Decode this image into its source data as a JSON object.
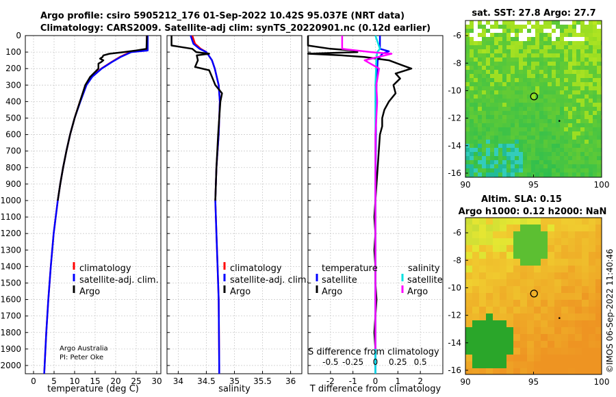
{
  "header": {
    "title_line1": "Argo profile: csiro 5905212_176 01-Sep-2022 10.42S 95.037E (NRT data)",
    "title_line2": "Climatology: CARS2009. Satellite-adj clim: synTS_20220901.nc (0.12d earlier)"
  },
  "credits": {
    "line1": "Argo Australia",
    "line2": "PI: Peter Oke"
  },
  "watermark": "©IMOS 06-Sep-2022 11:40:46",
  "colors": {
    "climatology": "#ff0000",
    "satellite_adj": "#0000ff",
    "argo": "#000000",
    "sat_temp": "#00e0e0",
    "sal_argo": "#ff00ff"
  },
  "chart_data": [
    {
      "type": "line",
      "title": "",
      "xlabel": "temperature (deg C)",
      "ylabel": "",
      "xlim": [
        -2,
        31
      ],
      "ylim": [
        2050,
        0
      ],
      "xticks": [
        0,
        5,
        10,
        15,
        20,
        25,
        30
      ],
      "yticks": [
        0,
        100,
        200,
        300,
        400,
        500,
        600,
        700,
        800,
        900,
        1000,
        1100,
        1200,
        1300,
        1400,
        1500,
        1600,
        1700,
        1800,
        1900,
        2000
      ],
      "legend": [
        "climatology",
        "satellite-adj. clim.",
        "Argo"
      ],
      "series": [
        {
          "name": "climatology",
          "depth": [
            0,
            90,
            100,
            130,
            160,
            200,
            250,
            300,
            400,
            500,
            600,
            700,
            800,
            900,
            1000,
            1200,
            1400,
            1600,
            1800,
            2000,
            2050
          ],
          "values": [
            27.6,
            27.6,
            23.5,
            21.0,
            19.0,
            16.5,
            14.2,
            12.8,
            11.3,
            10.0,
            8.9,
            8.0,
            7.2,
            6.5,
            5.9,
            4.9,
            4.2,
            3.6,
            3.1,
            2.7,
            2.6
          ]
        },
        {
          "name": "satellite-adj. clim.",
          "depth": [
            0,
            90,
            100,
            130,
            160,
            200,
            250,
            300,
            400,
            500,
            600,
            700,
            800,
            900,
            1000,
            1200,
            1400,
            1600,
            1800,
            2000,
            2050
          ],
          "values": [
            27.8,
            27.8,
            23.8,
            21.2,
            19.1,
            16.6,
            14.3,
            12.9,
            11.4,
            10.0,
            8.9,
            8.0,
            7.2,
            6.5,
            5.9,
            4.9,
            4.2,
            3.6,
            3.1,
            2.7,
            2.6
          ]
        },
        {
          "name": "Argo",
          "depth": [
            0,
            80,
            90,
            100,
            110,
            120,
            130,
            140,
            150,
            160,
            170,
            200,
            250,
            300,
            400,
            500,
            600,
            700,
            800,
            900,
            1000
          ],
          "values": [
            27.6,
            27.5,
            25.0,
            22.0,
            18.5,
            17.0,
            16.8,
            16.2,
            17.0,
            16.5,
            15.8,
            15.8,
            13.8,
            12.6,
            11.3,
            10.0,
            8.9,
            8.0,
            7.2,
            6.5,
            5.9
          ]
        }
      ]
    },
    {
      "type": "line",
      "title": "",
      "xlabel": "salinity",
      "ylabel": "",
      "xlim": [
        33.8,
        36.2
      ],
      "ylim": [
        2050,
        0
      ],
      "xticks": [
        34,
        34.5,
        35,
        35.5,
        36
      ],
      "legend": [
        "climatology",
        "satellite-adj. clim.",
        "Argo"
      ],
      "series": [
        {
          "name": "climatology",
          "depth": [
            0,
            50,
            80,
            100,
            150,
            200,
            300,
            400,
            600,
            800,
            1000,
            1200,
            1400,
            1600,
            2000,
            2050
          ],
          "values": [
            34.25,
            34.3,
            34.4,
            34.5,
            34.6,
            34.65,
            34.72,
            34.74,
            34.72,
            34.68,
            34.66,
            34.68,
            34.7,
            34.72,
            34.73,
            34.73
          ]
        },
        {
          "name": "satellite-adj. clim.",
          "depth": [
            0,
            50,
            80,
            100,
            150,
            200,
            300,
            400,
            600,
            800,
            1000,
            1200,
            1400,
            1600,
            2000,
            2050
          ],
          "values": [
            34.22,
            34.27,
            34.38,
            34.5,
            34.6,
            34.65,
            34.72,
            34.74,
            34.72,
            34.68,
            34.66,
            34.68,
            34.7,
            34.72,
            34.73,
            34.73
          ]
        },
        {
          "name": "Argo",
          "depth": [
            0,
            60,
            80,
            100,
            110,
            120,
            150,
            190,
            210,
            250,
            300,
            350,
            400,
            500,
            600,
            800,
            1000
          ],
          "values": [
            33.88,
            33.88,
            34.25,
            34.32,
            34.55,
            34.33,
            34.35,
            34.3,
            34.55,
            34.6,
            34.66,
            34.78,
            34.75,
            34.73,
            34.71,
            34.68,
            34.66
          ]
        }
      ]
    },
    {
      "type": "line",
      "title": "",
      "xlabel": "T difference from climatology",
      "xlabel_top": "S difference from climatology",
      "ylabel": "",
      "xlim": [
        -3,
        3
      ],
      "ylim": [
        2050,
        0
      ],
      "xticks": [
        -2,
        -1,
        0,
        1,
        2
      ],
      "xticks_top": [
        "-0.5",
        "-0.25",
        "0",
        "0.25",
        "0.5"
      ],
      "legend_headers": [
        "temperature",
        "salinity"
      ],
      "legend": [
        "satellite",
        "Argo",
        "satellite",
        "Argo"
      ],
      "series": [
        {
          "name": "temperature satellite",
          "depth": [
            0,
            80,
            95,
            110,
            150,
            300,
            600,
            1000,
            1500,
            2050
          ],
          "values": [
            0.2,
            0.2,
            0.6,
            0.3,
            0.1,
            0.05,
            0.02,
            0.0,
            0.0,
            0.0
          ]
        },
        {
          "name": "temperature Argo",
          "depth": [
            0,
            60,
            80,
            90,
            100,
            110,
            120,
            130,
            150,
            180,
            200,
            230,
            260,
            300,
            350,
            400,
            450,
            500,
            550,
            600,
            700,
            800,
            900,
            1000,
            1100,
            1200,
            1300,
            1400,
            1500,
            1600,
            1700,
            1800,
            1900
          ],
          "values": [
            -3.0,
            -3.0,
            -2.0,
            -1.0,
            -0.8,
            -3.0,
            -1.5,
            -0.5,
            0.6,
            1.2,
            1.6,
            0.9,
            1.1,
            0.8,
            0.9,
            0.6,
            0.4,
            0.3,
            0.3,
            0.2,
            0.15,
            0.1,
            0.05,
            0.0,
            -0.05,
            0.0,
            -0.05,
            0.0,
            0.0,
            0.05,
            0.0,
            -0.05,
            0.0
          ]
        },
        {
          "name": "salinity satellite",
          "depth": [
            0,
            80,
            100,
            150,
            300,
            600,
            1000,
            1500,
            2050
          ],
          "values": [
            0.0,
            0.05,
            0.02,
            0.01,
            0.0,
            0.0,
            0.0,
            0.0,
            0.0
          ]
        },
        {
          "name": "salinity Argo",
          "depth": [
            0,
            80,
            100,
            110,
            150,
            200,
            300,
            400,
            600,
            800,
            1000,
            1500,
            1900
          ],
          "values": [
            -0.37,
            -0.37,
            -0.05,
            0.18,
            -0.12,
            0.04,
            0.01,
            0.02,
            0.0,
            0.0,
            0.0,
            0.0,
            0.0
          ]
        }
      ]
    },
    {
      "type": "heatmap",
      "title": "sat. SST: 27.8 Argo: 27.7",
      "xlabel": "",
      "ylabel": "",
      "xlim": [
        90,
        100
      ],
      "ylim": [
        -16.3,
        -4.9
      ],
      "xticks": [
        90,
        95,
        100
      ],
      "yticks": [
        -6,
        -8,
        -10,
        -12,
        -14,
        -16
      ],
      "marker": {
        "lon": 95.037,
        "lat": -10.42
      },
      "dot": {
        "lon": 96.9,
        "lat": -12.2
      }
    },
    {
      "type": "heatmap",
      "title": "Altim. SLA: 0.15",
      "subtitle": "Argo h1000: 0.12 h2000: NaN",
      "xlabel": "",
      "ylabel": "",
      "xlim": [
        90,
        100
      ],
      "ylim": [
        -16.3,
        -4.9
      ],
      "xticks": [
        90,
        95,
        100
      ],
      "yticks": [
        -6,
        -8,
        -10,
        -12,
        -14,
        -16
      ],
      "marker": {
        "lon": 95.037,
        "lat": -10.42
      },
      "dot": {
        "lon": 96.9,
        "lat": -12.2
      }
    }
  ]
}
